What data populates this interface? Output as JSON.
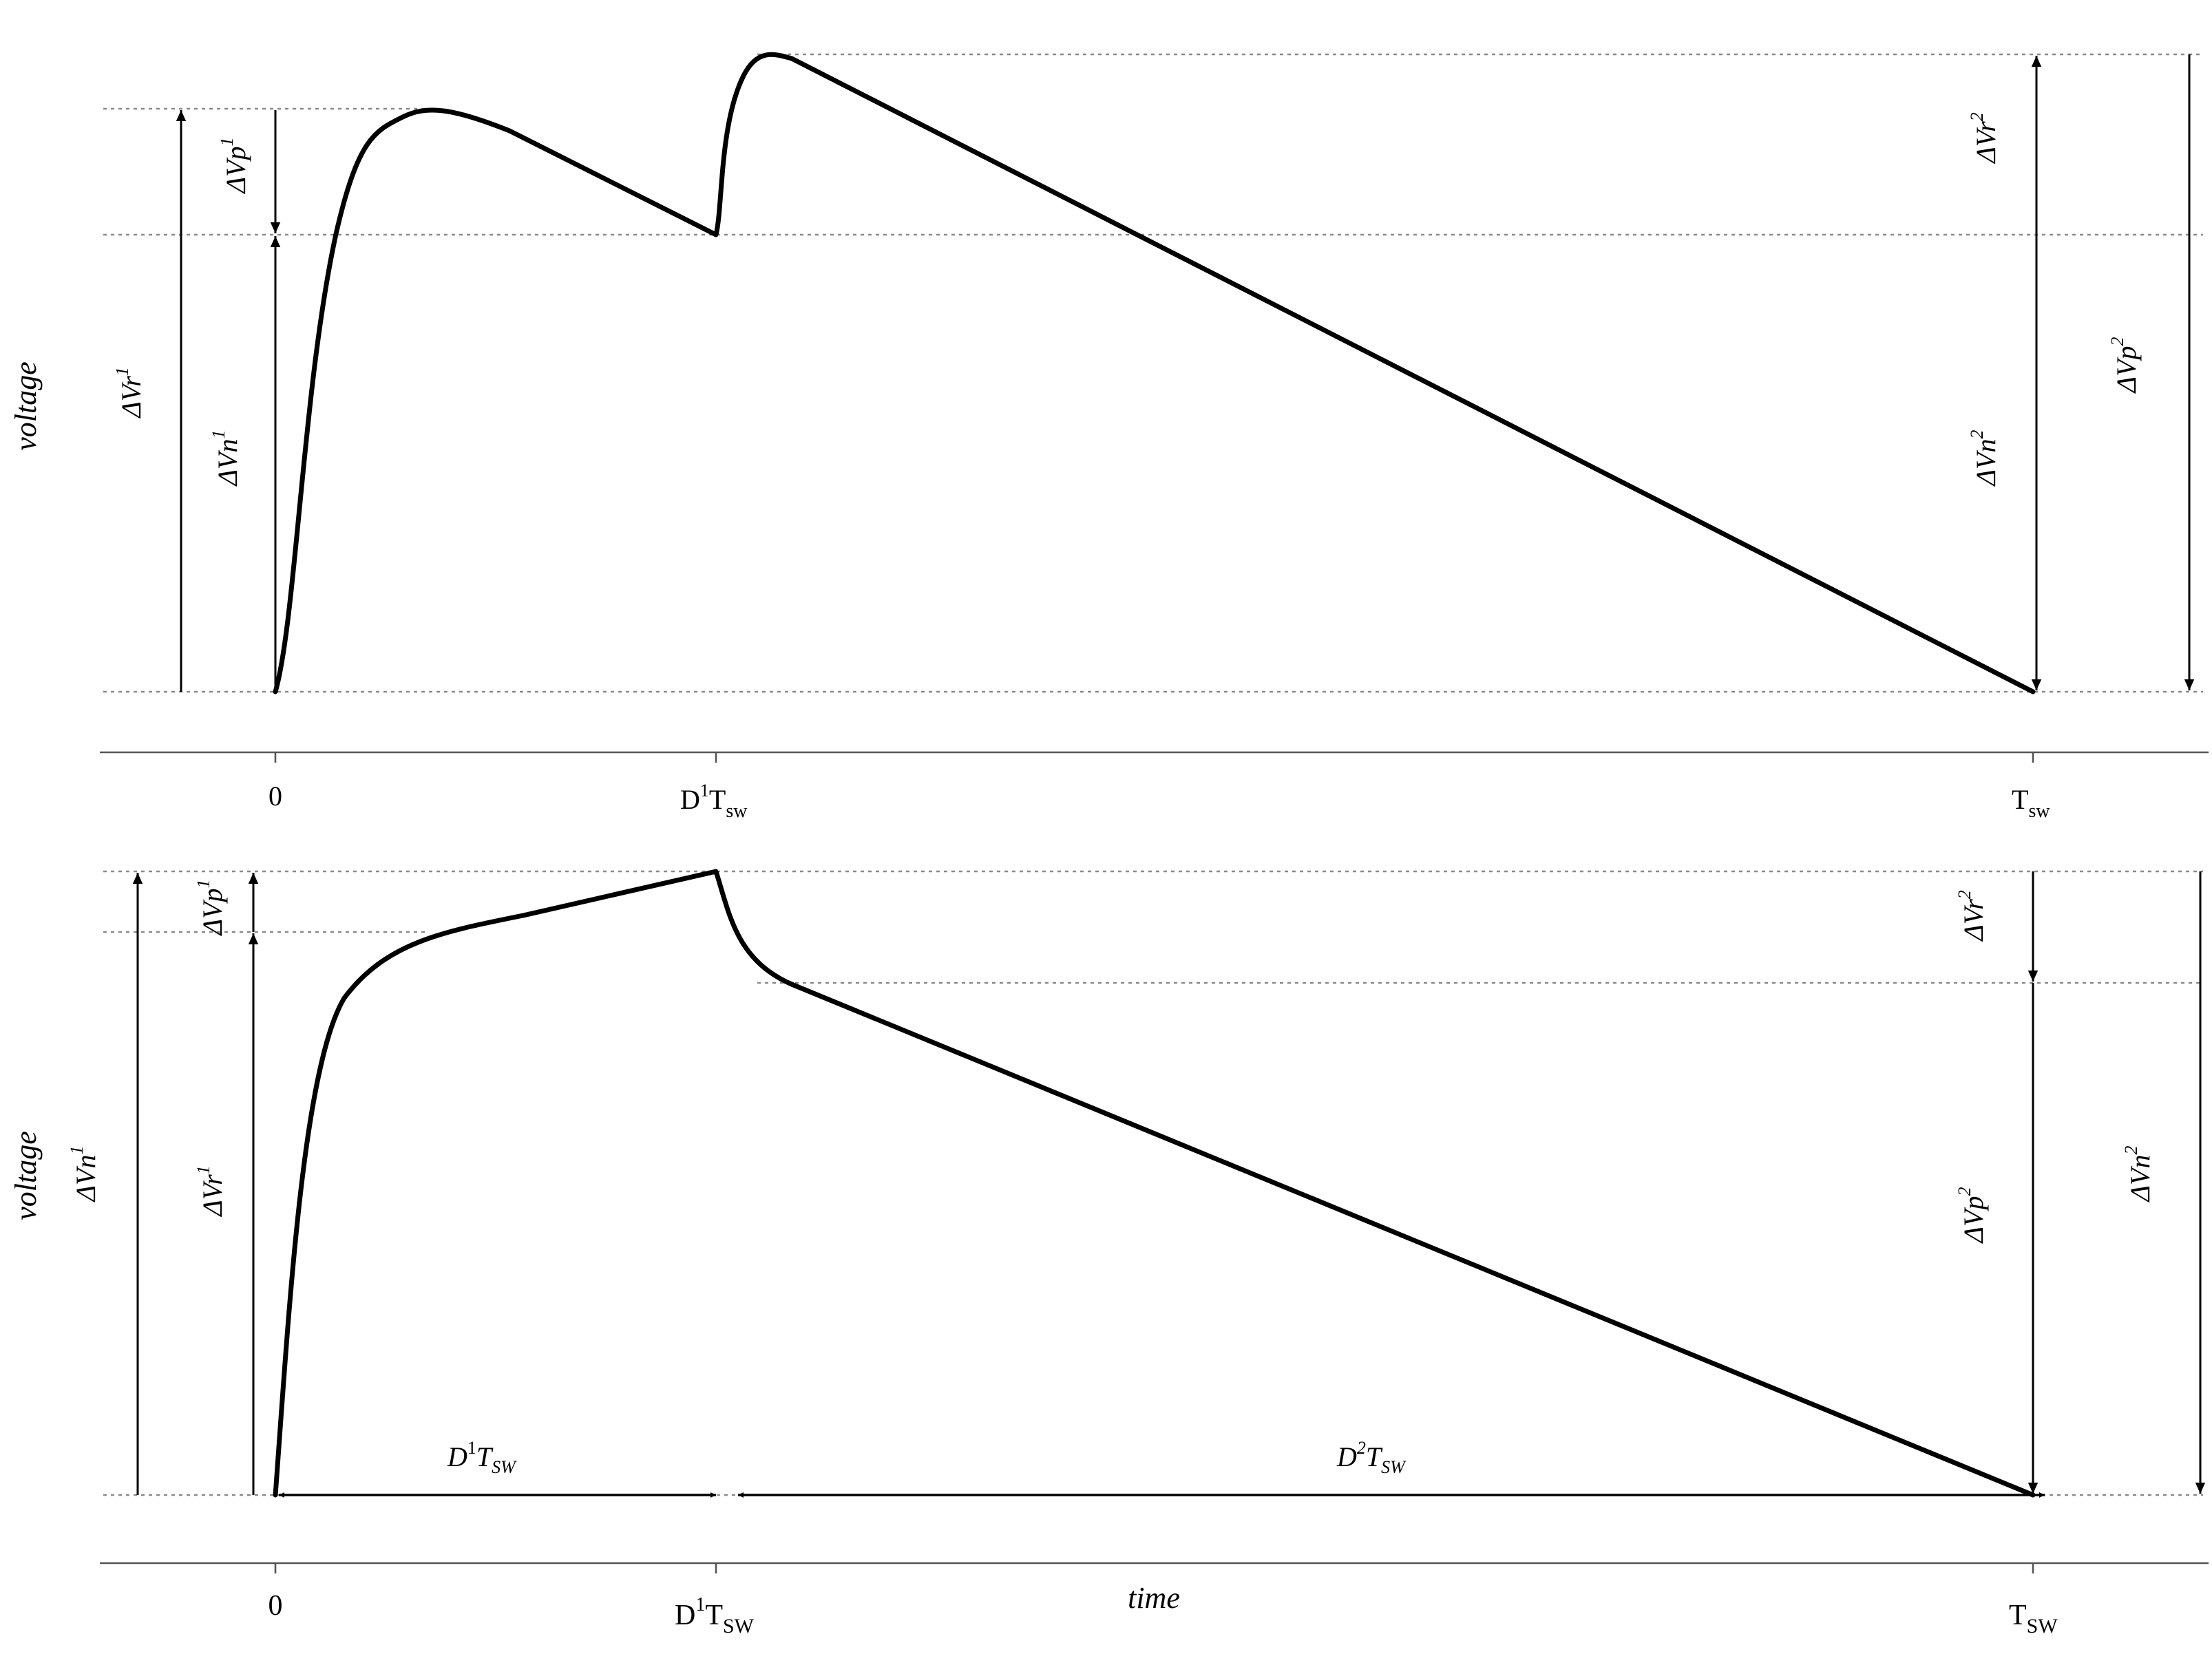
{
  "top_panel": {
    "y_label": "voltage",
    "ticks": {
      "t0": "0",
      "t1_main": "D",
      "t1_sup": "1",
      "t1_main2": "T",
      "t1_sub": "sw",
      "t2_main": "T",
      "t2_sub": "sw"
    },
    "labels": {
      "dvr1": {
        "base": "ΔVr",
        "sup": "1"
      },
      "dvp1": {
        "base": "ΔVp",
        "sup": "1"
      },
      "dvn1": {
        "base": "ΔVn",
        "sup": "1"
      },
      "dvr2": {
        "base": "ΔVr",
        "sup": "2"
      },
      "dvn2": {
        "base": "ΔVn",
        "sup": "2"
      },
      "dvp2": {
        "base": "ΔVp",
        "sup": "2"
      }
    }
  },
  "bottom_panel": {
    "y_label": "voltage",
    "x_label": "time",
    "ticks": {
      "t0": "0",
      "t1_main": "D",
      "t1_sup": "1",
      "t1_main2": "T",
      "t1_sub": "SW",
      "t2_main": "T",
      "t2_sub": "SW"
    },
    "labels": {
      "dvn1": {
        "base": "ΔVn",
        "sup": "1"
      },
      "dvp1": {
        "base": "ΔVp",
        "sup": "1"
      },
      "dvr1": {
        "base": "ΔVr",
        "sup": "1"
      },
      "dvr2": {
        "base": "ΔVr",
        "sup": "2"
      },
      "dvp2": {
        "base": "ΔVp",
        "sup": "2"
      },
      "dvn2": {
        "base": "ΔVn",
        "sup": "2"
      },
      "d1tsw": {
        "main": "D",
        "sup": "1",
        "main2": "T",
        "sub": "SW"
      },
      "d2tsw": {
        "main": "D",
        "sup": "2",
        "main2": "T",
        "sub": "SW"
      }
    }
  },
  "colors": {
    "curve": "#000000",
    "guide": "#8a8a8a",
    "axis": "#555555"
  }
}
